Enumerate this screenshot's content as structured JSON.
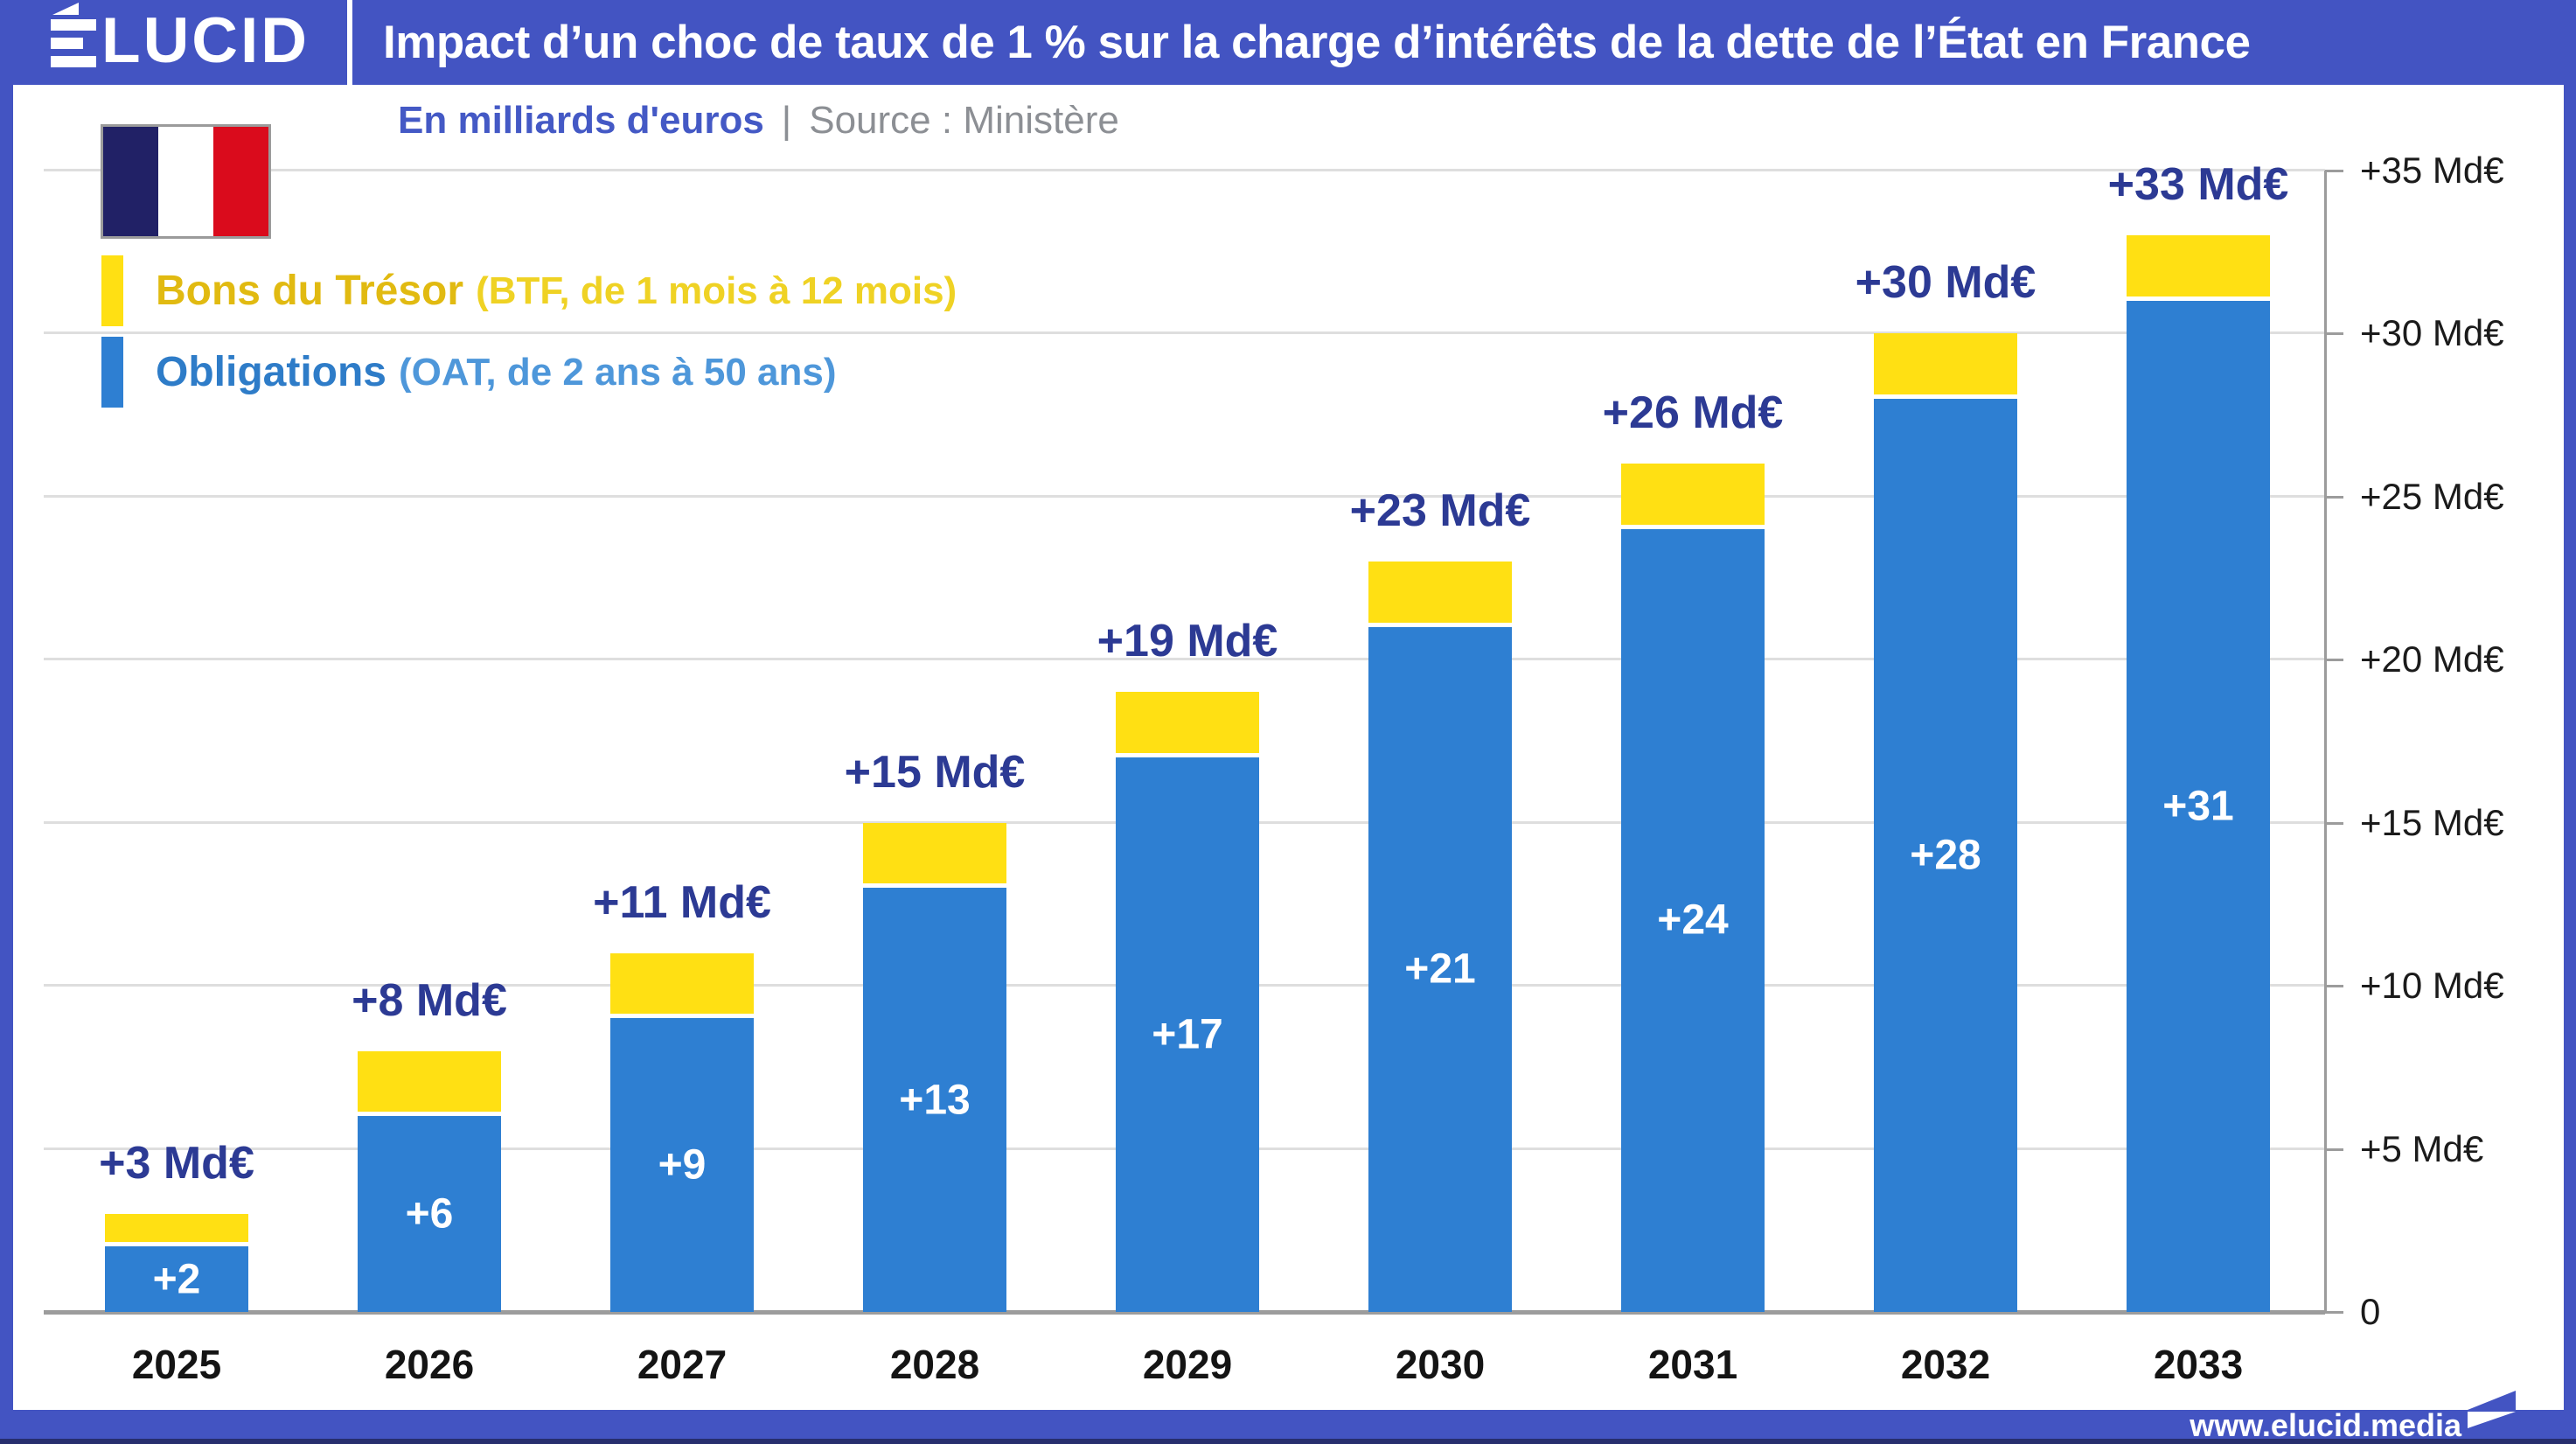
{
  "header": {
    "logo": {
      "letter_e": "É",
      "rest": "LUCID"
    },
    "title": "Impact d’un choc de taux de 1 % sur la charge d’intérêts de la dette de l’État en France"
  },
  "subtitle": {
    "unit_label": "En milliards d'euros",
    "separator": "|",
    "source_label": "Source : Ministère"
  },
  "flag": {
    "description": "french-flag",
    "stripe_colors": [
      "#212166",
      "#FFFFFF",
      "#DA0B1C"
    ]
  },
  "legend": {
    "items": [
      {
        "label": "Bons du Trésor",
        "detail": "(BTF, de 1 mois à 12 mois)",
        "swatch_color": "#FFE013",
        "label_color": "#E1BA11",
        "detail_color": "#EFD224"
      },
      {
        "label": "Obligations",
        "detail": "(OAT, de 2 ans à 50 ans)",
        "swatch_color": "#2E7FD2",
        "label_color": "#2E7CC8",
        "detail_color": "#4E97DA"
      }
    ]
  },
  "chart_data": {
    "type": "bar",
    "stacked": true,
    "title": "Impact d’un choc de taux de 1 % sur la charge d’intérêts de la dette de l’État en France",
    "unit": "Md€ (milliards d'euros)",
    "categories": [
      "2025",
      "2026",
      "2027",
      "2028",
      "2029",
      "2030",
      "2031",
      "2032",
      "2033"
    ],
    "series": [
      {
        "name": "Obligations (OAT, de 2 ans à 50 ans)",
        "color": "#2E7FD2",
        "values": [
          2,
          6,
          9,
          13,
          17,
          21,
          24,
          28,
          31
        ],
        "labels": [
          "+2",
          "+6",
          "+9",
          "+13",
          "+17",
          "+21",
          "+24",
          "+28",
          "+31"
        ]
      },
      {
        "name": "Bons du Trésor (BTF, de 1 mois à 12 mois)",
        "color": "#FFE013",
        "values": [
          1,
          2,
          2,
          2,
          2,
          2,
          2,
          2,
          2
        ]
      }
    ],
    "totals": [
      3,
      8,
      11,
      15,
      19,
      23,
      26,
      30,
      33
    ],
    "total_labels": [
      "+3 Md€",
      "+8 Md€",
      "+11 Md€",
      "+15 Md€",
      "+19 Md€",
      "+23 Md€",
      "+26 Md€",
      "+30 Md€",
      "+33 Md€"
    ],
    "ylim": [
      0,
      35
    ],
    "ytick_labels": [
      "0",
      "+5 Md€",
      "+10 Md€",
      "+15 Md€",
      "+20 Md€",
      "+25 Md€",
      "+30 Md€",
      "+35 Md€"
    ],
    "grid": true,
    "legend_position": "top-left",
    "value_label_color_inside": "#FFFFFF",
    "total_label_color": "#2C3A94"
  },
  "footer": {
    "url": "www.elucid.media"
  },
  "colors": {
    "frame_blue": "#4354C2",
    "bar_blue": "#2E7FD2",
    "yellow": "#FFE013",
    "navy_text": "#2C3A94",
    "grid": "#DEDEDE",
    "axis": "#9C9C9C",
    "year_label": "#141414",
    "ytick_label": "#1B1B1B",
    "footer_dark": "#272E6E",
    "subtitle_gray": "#8C8F94",
    "subtitle_blue": "#4459C5"
  }
}
